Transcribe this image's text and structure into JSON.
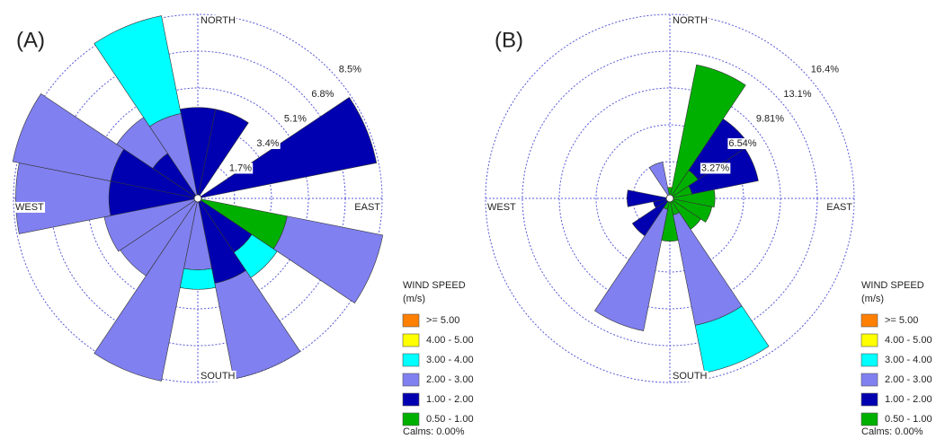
{
  "chart_data": [
    {
      "type": "windrose",
      "panel_label": "(A)",
      "categories": [
        "NORTH",
        null,
        null,
        null,
        "EAST",
        null,
        null,
        null,
        "SOUTH",
        null,
        null,
        null,
        "WEST",
        null,
        null,
        null
      ],
      "legend_title": [
        "WIND SPEED",
        "(m/s)"
      ],
      "calms": "Calms: 0.00%",
      "rlim": [
        0,
        8.5
      ],
      "rticks": [
        {
          "value": 1.7,
          "label": "1.7%"
        },
        {
          "value": 3.4,
          "label": "3.4%"
        },
        {
          "value": 5.1,
          "label": "5.1%"
        },
        {
          "value": 6.8,
          "label": "6.8%"
        },
        {
          "value": 8.5,
          "label": "8.5%"
        }
      ],
      "series": [
        {
          "name": ">= 5.00",
          "color": "#ff8000",
          "values": [
            0,
            0,
            0,
            0,
            0,
            0,
            0,
            0,
            0,
            0,
            0,
            0,
            0,
            0,
            0,
            0
          ]
        },
        {
          "name": "4.00 - 5.00",
          "color": "#ffff00",
          "values": [
            0,
            0,
            0,
            0,
            0,
            0,
            0,
            0,
            0,
            0,
            0,
            0,
            0,
            0,
            0,
            0
          ]
        },
        {
          "name": "3.00 - 4.00",
          "color": "#00ffff",
          "values": [
            0,
            0,
            0,
            0,
            0,
            0,
            1.4,
            0,
            0.9,
            0,
            0,
            0,
            0,
            0,
            0,
            4.6
          ]
        },
        {
          "name": "2.00 - 3.00",
          "color": "#8080f0",
          "values": [
            0,
            0,
            0,
            0,
            0,
            4.5,
            0,
            4.5,
            3.3,
            8.6,
            4.3,
            4.4,
            4.3,
            4.6,
            2.0,
            4.0
          ]
        },
        {
          "name": "1.00 - 2.00",
          "color": "#0000b0",
          "values": [
            4.2,
            4.2,
            0,
            8.4,
            0,
            0,
            3.0,
            4.0,
            0,
            0,
            0,
            0,
            4.1,
            4.1,
            2.5,
            0
          ]
        },
        {
          "name": "0.50 - 1.00",
          "color": "#00b000",
          "values": [
            0,
            0,
            0,
            0,
            0,
            4.2,
            0,
            0,
            0,
            0,
            0,
            0,
            0,
            0,
            0,
            0
          ]
        }
      ]
    },
    {
      "type": "windrose",
      "panel_label": "(B)",
      "categories": [
        "NORTH",
        null,
        null,
        null,
        "EAST",
        null,
        null,
        null,
        "SOUTH",
        null,
        null,
        null,
        "WEST",
        null,
        null,
        null
      ],
      "legend_title": [
        "WIND SPEED",
        "(m/s)"
      ],
      "calms": "Calms: 0.00%",
      "rlim": [
        0,
        16.35
      ],
      "rticks": [
        {
          "value": 3.27,
          "label": "3.27%"
        },
        {
          "value": 6.54,
          "label": "6.54%"
        },
        {
          "value": 9.81,
          "label": "9.81%"
        },
        {
          "value": 13.08,
          "label": "13.1%"
        },
        {
          "value": 16.35,
          "label": "16.4%"
        }
      ],
      "series": [
        {
          "name": ">= 5.00",
          "color": "#ff8000",
          "values": [
            0,
            0,
            0,
            0,
            0,
            0,
            0,
            0,
            0,
            0,
            0,
            0,
            0,
            0,
            0,
            0
          ]
        },
        {
          "name": "4.00 - 5.00",
          "color": "#ffff00",
          "values": [
            0,
            0,
            0,
            0,
            0,
            0,
            0,
            0,
            0,
            0,
            0,
            0,
            0,
            0,
            0,
            0
          ]
        },
        {
          "name": "3.00 - 4.00",
          "color": "#00ffff",
          "values": [
            0,
            0,
            0,
            0,
            0,
            0,
            0,
            4.3,
            0,
            0,
            0,
            0,
            0,
            0,
            0,
            0
          ]
        },
        {
          "name": "2.00 - 3.00",
          "color": "#8080f0",
          "values": [
            0,
            0,
            0,
            0,
            0,
            0,
            0,
            10.0,
            0,
            11.0,
            0,
            0,
            0,
            0,
            0,
            3.3
          ]
        },
        {
          "name": "1.00 - 2.00",
          "color": "#0000b0",
          "values": [
            0,
            0,
            5.5,
            6.0,
            0,
            0,
            0,
            0,
            0,
            0,
            4.0,
            1.5,
            3.8,
            0,
            0,
            0
          ]
        },
        {
          "name": "0.50 - 1.00",
          "color": "#00b000",
          "values": [
            1.0,
            12.1,
            3.0,
            2.0,
            4.0,
            3.8,
            3.3,
            1.5,
            3.8,
            1.0,
            0,
            0,
            0,
            0,
            0,
            0
          ]
        }
      ]
    }
  ]
}
